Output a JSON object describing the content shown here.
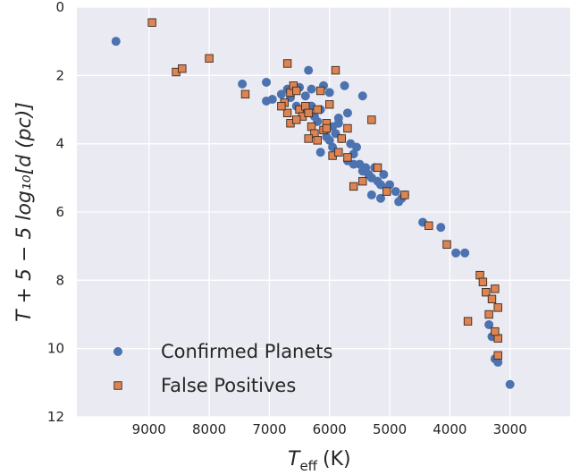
{
  "chart_data": {
    "type": "scatter",
    "title": "",
    "xlabel_main": "T",
    "xlabel_sub": "eff",
    "xlabel_unit": "(K)",
    "ylabel": "T + 5 − 5 log₁₀[d (pc)]",
    "xlim": [
      10200,
      2000
    ],
    "ylim": [
      12,
      0
    ],
    "x_reversed": true,
    "y_reversed": true,
    "grid": true,
    "legend_position": "lower-left",
    "x_ticks": [
      9000,
      8000,
      7000,
      6000,
      5000,
      4000,
      3000
    ],
    "x_tick_labels": [
      "9000",
      "8000",
      "7000",
      "6000",
      "5000",
      "4000",
      "3000"
    ],
    "y_ticks": [
      0,
      2,
      4,
      6,
      8,
      10,
      12
    ],
    "y_tick_labels": [
      "0",
      "2",
      "4",
      "6",
      "8",
      "10",
      "12"
    ],
    "colors": {
      "background": "#eaeaf2",
      "grid": "#ffffff",
      "confirmed": "#4c72b0",
      "false_positive": "#dd8452",
      "square_edge": "#3a2a20"
    },
    "series": [
      {
        "name": "Confirmed Planets",
        "marker": "circle",
        "points": [
          [
            9550,
            1.0
          ],
          [
            7450,
            2.25
          ],
          [
            7050,
            2.2
          ],
          [
            7050,
            2.75
          ],
          [
            6950,
            2.7
          ],
          [
            6800,
            2.55
          ],
          [
            6700,
            2.4
          ],
          [
            6650,
            2.65
          ],
          [
            6550,
            2.9
          ],
          [
            6500,
            2.35
          ],
          [
            6450,
            3.0
          ],
          [
            6350,
            1.85
          ],
          [
            6300,
            2.4
          ],
          [
            6250,
            3.2
          ],
          [
            6200,
            3.35
          ],
          [
            6150,
            3.0
          ],
          [
            6100,
            2.3
          ],
          [
            6050,
            3.6
          ],
          [
            6000,
            3.9
          ],
          [
            6000,
            2.5
          ],
          [
            5950,
            4.1
          ],
          [
            5900,
            3.7
          ],
          [
            5850,
            3.4
          ],
          [
            5800,
            3.85
          ],
          [
            5750,
            2.3
          ],
          [
            5700,
            3.1
          ],
          [
            5650,
            4.0
          ],
          [
            5600,
            4.3
          ],
          [
            5550,
            4.1
          ],
          [
            5500,
            4.6
          ],
          [
            5450,
            2.6
          ],
          [
            5450,
            4.8
          ],
          [
            5400,
            4.7
          ],
          [
            5350,
            4.9
          ],
          [
            5300,
            5.0
          ],
          [
            5250,
            4.7
          ],
          [
            5200,
            5.1
          ],
          [
            5150,
            5.2
          ],
          [
            5100,
            4.9
          ],
          [
            5050,
            5.3
          ],
          [
            5000,
            5.2
          ],
          [
            4900,
            5.4
          ],
          [
            4850,
            5.7
          ],
          [
            4800,
            5.6
          ],
          [
            4750,
            5.5
          ],
          [
            5300,
            5.5
          ],
          [
            5150,
            5.6
          ],
          [
            4450,
            6.3
          ],
          [
            4150,
            6.45
          ],
          [
            3900,
            7.2
          ],
          [
            3750,
            7.2
          ],
          [
            3350,
            9.3
          ],
          [
            3300,
            9.65
          ],
          [
            3250,
            10.3
          ],
          [
            3200,
            10.4
          ],
          [
            3000,
            11.05
          ],
          [
            6150,
            4.25
          ],
          [
            6050,
            3.8
          ],
          [
            5950,
            3.5
          ],
          [
            5850,
            3.25
          ],
          [
            6400,
            2.6
          ],
          [
            6300,
            2.9
          ],
          [
            5700,
            4.5
          ],
          [
            5600,
            4.6
          ]
        ]
      },
      {
        "name": "False Positives",
        "marker": "square",
        "points": [
          [
            8950,
            0.45
          ],
          [
            8550,
            1.9
          ],
          [
            8450,
            1.8
          ],
          [
            8000,
            1.5
          ],
          [
            7400,
            2.55
          ],
          [
            6700,
            1.65
          ],
          [
            6650,
            2.5
          ],
          [
            6600,
            2.3
          ],
          [
            6550,
            2.45
          ],
          [
            6750,
            2.8
          ],
          [
            6700,
            3.1
          ],
          [
            6650,
            3.4
          ],
          [
            6500,
            3.0
          ],
          [
            6450,
            3.2
          ],
          [
            6400,
            2.9
          ],
          [
            6350,
            3.1
          ],
          [
            6300,
            3.5
          ],
          [
            6250,
            3.7
          ],
          [
            6200,
            3.9
          ],
          [
            6150,
            2.45
          ],
          [
            6100,
            3.6
          ],
          [
            6050,
            3.4
          ],
          [
            6000,
            2.85
          ],
          [
            5950,
            4.35
          ],
          [
            5900,
            1.85
          ],
          [
            5850,
            4.25
          ],
          [
            5800,
            3.85
          ],
          [
            5700,
            4.4
          ],
          [
            5700,
            3.55
          ],
          [
            5600,
            5.25
          ],
          [
            5450,
            5.1
          ],
          [
            5300,
            3.3
          ],
          [
            5200,
            4.7
          ],
          [
            5050,
            5.4
          ],
          [
            4750,
            5.5
          ],
          [
            4350,
            6.4
          ],
          [
            4050,
            6.95
          ],
          [
            3500,
            7.85
          ],
          [
            3450,
            8.05
          ],
          [
            3400,
            8.35
          ],
          [
            3350,
            9.0
          ],
          [
            3300,
            8.55
          ],
          [
            3250,
            8.25
          ],
          [
            3200,
            8.8
          ],
          [
            3200,
            9.7
          ],
          [
            3200,
            10.2
          ],
          [
            3250,
            9.5
          ],
          [
            3700,
            9.2
          ],
          [
            6800,
            2.9
          ],
          [
            6200,
            3.0
          ],
          [
            6050,
            3.55
          ],
          [
            6550,
            3.3
          ],
          [
            6350,
            3.85
          ]
        ]
      }
    ]
  }
}
